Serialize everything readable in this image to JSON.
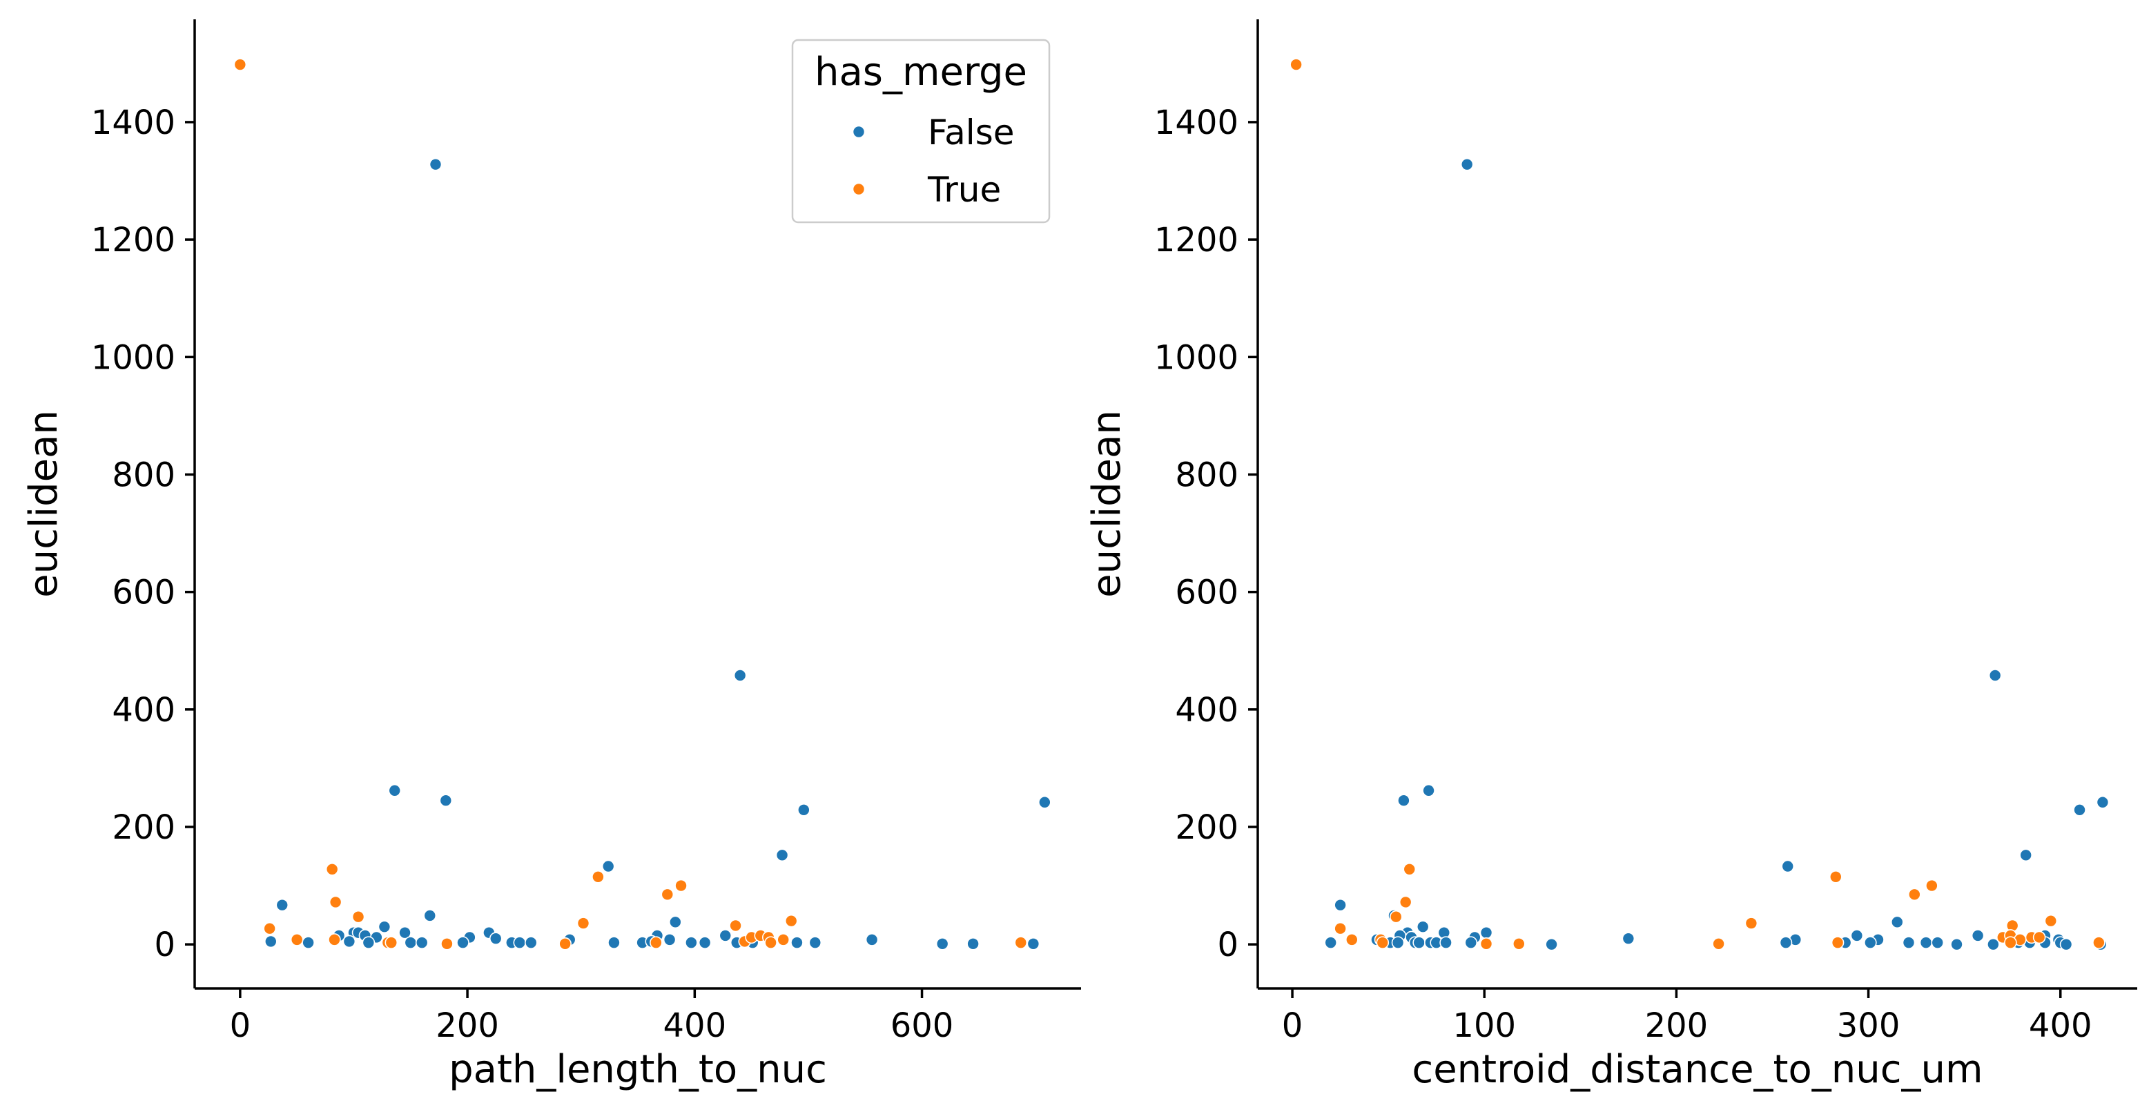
{
  "chart_data": [
    {
      "type": "scatter",
      "xlabel": "path_length_to_nuc",
      "ylabel": "euclidean",
      "xlim": [
        -40,
        740
      ],
      "ylim": [
        -75,
        1575
      ],
      "xticks": [
        0,
        200,
        400,
        600
      ],
      "yticks": [
        0,
        200,
        400,
        600,
        800,
        1000,
        1200,
        1400
      ],
      "grid": false,
      "legend": {
        "title": "has_merge",
        "placement": "top-right",
        "entries": [
          {
            "label": "False",
            "color": "#1f77b4"
          },
          {
            "label": "True",
            "color": "#ff7f0e"
          }
        ]
      },
      "series": [
        {
          "name": "False",
          "color": "#1f77b4",
          "points": [
            [
              172,
              1328
            ],
            [
              440,
              458
            ],
            [
              136,
              262
            ],
            [
              181,
              245
            ],
            [
              708,
              242
            ],
            [
              496,
              229
            ],
            [
              477,
              152
            ],
            [
              324,
              133
            ],
            [
              37,
              67
            ],
            [
              167,
              49
            ],
            [
              383,
              38
            ],
            [
              127,
              30
            ],
            [
              100,
              20
            ],
            [
              104,
              20
            ],
            [
              219,
              20
            ],
            [
              145,
              20
            ],
            [
              87,
              15
            ],
            [
              110,
              15
            ],
            [
              120,
              12
            ],
            [
              427,
              15
            ],
            [
              367,
              15
            ],
            [
              202,
              12
            ],
            [
              225,
              10
            ],
            [
              290,
              8
            ],
            [
              556,
              8
            ],
            [
              27,
              5
            ],
            [
              96,
              5
            ],
            [
              60,
              3
            ],
            [
              113,
              3
            ],
            [
              150,
              3
            ],
            [
              160,
              3
            ],
            [
              196,
              3
            ],
            [
              239,
              3
            ],
            [
              246,
              3
            ],
            [
              256,
              3
            ],
            [
              329,
              3
            ],
            [
              354,
              3
            ],
            [
              362,
              5
            ],
            [
              378,
              8
            ],
            [
              397,
              3
            ],
            [
              409,
              3
            ],
            [
              437,
              3
            ],
            [
              451,
              3
            ],
            [
              490,
              3
            ],
            [
              506,
              3
            ],
            [
              618,
              1
            ],
            [
              645,
              1
            ],
            [
              698,
              1
            ]
          ]
        },
        {
          "name": "True",
          "color": "#ff7f0e",
          "points": [
            [
              0,
              1498
            ],
            [
              81,
              128
            ],
            [
              315,
              115
            ],
            [
              388,
              100
            ],
            [
              376,
              85
            ],
            [
              84,
              72
            ],
            [
              104,
              47
            ],
            [
              302,
              36
            ],
            [
              436,
              32
            ],
            [
              485,
              40
            ],
            [
              26,
              27
            ],
            [
              50,
              8
            ],
            [
              83,
              8
            ],
            [
              130,
              3
            ],
            [
              133,
              3
            ],
            [
              182,
              1
            ],
            [
              286,
              1
            ],
            [
              366,
              3
            ],
            [
              444,
              5
            ],
            [
              450,
              12
            ],
            [
              458,
              15
            ],
            [
              465,
              12
            ],
            [
              467,
              3
            ],
            [
              478,
              8
            ],
            [
              687,
              3
            ]
          ]
        }
      ]
    },
    {
      "type": "scatter",
      "xlabel": "centroid_distance_to_nuc_um",
      "ylabel": "euclidean",
      "xlim": [
        -18,
        440
      ],
      "ylim": [
        -75,
        1575
      ],
      "xticks": [
        0,
        100,
        200,
        300,
        400
      ],
      "yticks": [
        0,
        200,
        400,
        600,
        800,
        1000,
        1200,
        1400
      ],
      "grid": false,
      "series": [
        {
          "name": "False",
          "color": "#1f77b4",
          "points": [
            [
              91,
              1328
            ],
            [
              366,
              458
            ],
            [
              71,
              262
            ],
            [
              58,
              245
            ],
            [
              422,
              242
            ],
            [
              410,
              229
            ],
            [
              382,
              152
            ],
            [
              258,
              133
            ],
            [
              25,
              67
            ],
            [
              53,
              49
            ],
            [
              315,
              38
            ],
            [
              68,
              30
            ],
            [
              60,
              20
            ],
            [
              79,
              20
            ],
            [
              101,
              20
            ],
            [
              56,
              15
            ],
            [
              62,
              12
            ],
            [
              294,
              15
            ],
            [
              392,
              15
            ],
            [
              357,
              15
            ],
            [
              95,
              12
            ],
            [
              175,
              10
            ],
            [
              262,
              8
            ],
            [
              305,
              8
            ],
            [
              399,
              8
            ],
            [
              20,
              3
            ],
            [
              44,
              8
            ],
            [
              51,
              3
            ],
            [
              55,
              3
            ],
            [
              64,
              3
            ],
            [
              66,
              3
            ],
            [
              72,
              3
            ],
            [
              75,
              3
            ],
            [
              80,
              3
            ],
            [
              93,
              3
            ],
            [
              135,
              0
            ],
            [
              257,
              3
            ],
            [
              288,
              3
            ],
            [
              301,
              3
            ],
            [
              321,
              3
            ],
            [
              330,
              3
            ],
            [
              336,
              3
            ],
            [
              346,
              0
            ],
            [
              365,
              0
            ],
            [
              378,
              3
            ],
            [
              384,
              3
            ],
            [
              392,
              3
            ],
            [
              400,
              3
            ],
            [
              403,
              0
            ],
            [
              421,
              0
            ]
          ]
        },
        {
          "name": "True",
          "color": "#ff7f0e",
          "points": [
            [
              2,
              1498
            ],
            [
              61,
              128
            ],
            [
              283,
              115
            ],
            [
              333,
              100
            ],
            [
              324,
              85
            ],
            [
              59,
              72
            ],
            [
              54,
              47
            ],
            [
              239,
              36
            ],
            [
              375,
              32
            ],
            [
              395,
              40
            ],
            [
              25,
              27
            ],
            [
              31,
              8
            ],
            [
              46,
              8
            ],
            [
              47,
              3
            ],
            [
              118,
              1
            ],
            [
              101,
              1
            ],
            [
              222,
              1
            ],
            [
              284,
              3
            ],
            [
              370,
              12
            ],
            [
              374,
              15
            ],
            [
              379,
              8
            ],
            [
              385,
              12
            ],
            [
              389,
              12
            ],
            [
              374,
              3
            ],
            [
              420,
              3
            ]
          ]
        }
      ]
    }
  ]
}
